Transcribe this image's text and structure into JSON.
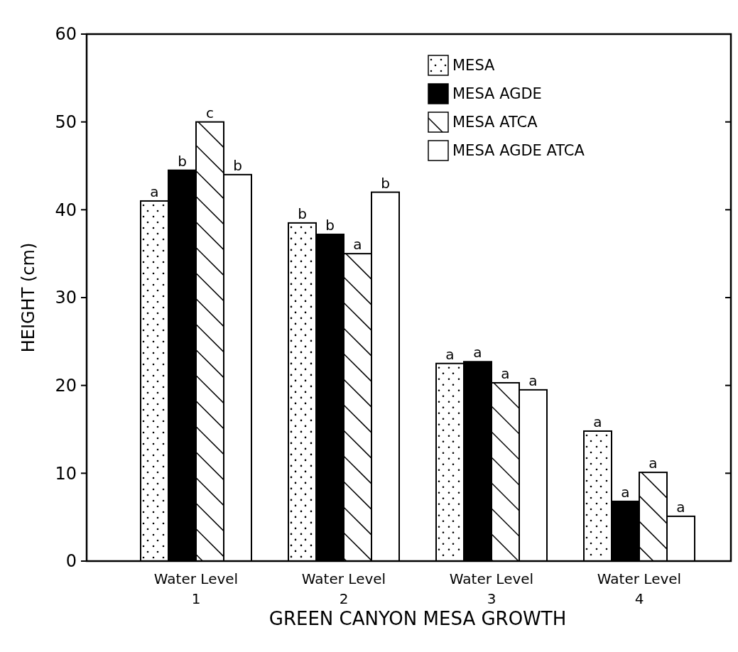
{
  "chart_data": {
    "type": "bar",
    "xlabel": "GREEN CANYON MESA GROWTH",
    "ylabel": "HEIGHT (cm)",
    "categories": [
      "Water Level 1",
      "Water Level 2",
      "Water Level 3",
      "Water Level 4"
    ],
    "series": [
      {
        "name": "MESA",
        "color": "#ffffff",
        "values": [
          41,
          38.5,
          22.5,
          14.8
        ],
        "value_labels": [
          "a",
          "b",
          "a",
          "a"
        ]
      },
      {
        "name": "MESA AGDE",
        "color": "#000000",
        "values": [
          44.5,
          37.2,
          22.7,
          6.8
        ],
        "value_labels": [
          "b",
          "b",
          "a",
          "a"
        ]
      },
      {
        "name": "MESA ATCA",
        "color": "#ffffff",
        "values": [
          50,
          35,
          20.3,
          10.1
        ],
        "value_labels": [
          "c",
          "a",
          "a",
          "a"
        ]
      },
      {
        "name": "MESA AGDE ATCA",
        "color": "#ffffff",
        "values": [
          44,
          42,
          19.5,
          5.1
        ],
        "value_labels": [
          "b",
          "b",
          "a",
          "a"
        ]
      }
    ],
    "ylim": [
      0,
      60
    ],
    "yticks": [
      0,
      10,
      20,
      30,
      40,
      50,
      60
    ],
    "legend": "top right",
    "grid": false
  }
}
